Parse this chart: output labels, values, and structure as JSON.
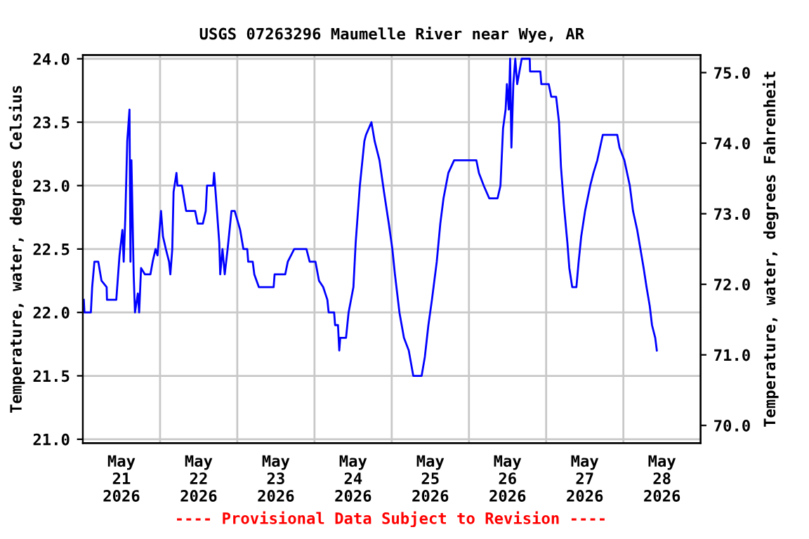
{
  "chart_data": {
    "type": "line",
    "title": "USGS 07263296 Maumelle River near Wye, AR",
    "ylabel": "Temperature, water, degrees Celsius",
    "y2label": "Temperature, water, degrees Fahrenheit",
    "annotations": [
      "---- Provisional Data Subject to Revision ----"
    ],
    "xlim": [
      "2026-05-21T00:00",
      "2026-05-29T00:00"
    ],
    "xticks": [
      {
        "value": "2026-05-21T12:00",
        "label": "May\n21\n2026"
      },
      {
        "value": "2026-05-22T00:00",
        "label": null
      },
      {
        "value": "2026-05-22T12:00",
        "label": "May\n22\n2026"
      },
      {
        "value": "2026-05-23T00:00",
        "label": null
      },
      {
        "value": "2026-05-23T12:00",
        "label": "May\n23\n2026"
      },
      {
        "value": "2026-05-24T00:00",
        "label": null
      },
      {
        "value": "2026-05-24T12:00",
        "label": "May\n24\n2026"
      },
      {
        "value": "2026-05-25T00:00",
        "label": null
      },
      {
        "value": "2026-05-25T12:00",
        "label": "May\n25\n2026"
      },
      {
        "value": "2026-05-26T00:00",
        "label": null
      },
      {
        "value": "2026-05-26T12:00",
        "label": "May\n26\n2026"
      },
      {
        "value": "2026-05-27T00:00",
        "label": null
      },
      {
        "value": "2026-05-27T12:00",
        "label": "May\n27\n2026"
      },
      {
        "value": "2026-05-28T00:00",
        "label": null
      },
      {
        "value": "2026-05-28T12:00",
        "label": "May\n28\n2026"
      }
    ],
    "ylim": [
      20.97,
      24.03
    ],
    "yticks": [
      {
        "value": 21,
        "label": "21.0"
      },
      {
        "value": 21.5,
        "label": "21.5"
      },
      {
        "value": 22,
        "label": "22.0"
      },
      {
        "value": 22.5,
        "label": "22.5"
      },
      {
        "value": 23,
        "label": "23.0"
      },
      {
        "value": 23.5,
        "label": "23.5"
      },
      {
        "value": 24,
        "label": "24.0"
      }
    ],
    "y2lim": [
      69.75,
      75.25
    ],
    "y2ticks": [
      {
        "value": 70,
        "label": "70.0"
      },
      {
        "value": 71,
        "label": "71.0"
      },
      {
        "value": 72,
        "label": "72.0"
      },
      {
        "value": 73,
        "label": "73.0"
      },
      {
        "value": 74,
        "label": "74.0"
      },
      {
        "value": 75,
        "label": "75.0"
      }
    ],
    "grid": true,
    "legend": false,
    "series": [
      {
        "color": "#0000ff",
        "x": [
          "2026-05-21T00:18",
          "2026-05-21T00:30",
          "2026-05-21T02:30",
          "2026-05-21T02:54",
          "2026-05-21T03:36",
          "2026-05-21T04:48",
          "2026-05-21T05:48",
          "2026-05-21T07:24",
          "2026-05-21T07:30",
          "2026-05-21T10:24",
          "2026-05-21T11:24",
          "2026-05-21T12:18",
          "2026-05-21T12:42",
          "2026-05-21T13:12",
          "2026-05-21T13:48",
          "2026-05-21T14:30",
          "2026-05-21T14:48",
          "2026-05-21T15:06",
          "2026-05-21T15:48",
          "2026-05-21T16:12",
          "2026-05-21T17:06",
          "2026-05-21T17:30",
          "2026-05-21T18:06",
          "2026-05-21T19:18",
          "2026-05-21T21:00",
          "2026-05-21T21:42",
          "2026-05-21T22:36",
          "2026-05-21T23:12",
          "2026-05-22T00:18",
          "2026-05-22T00:54",
          "2026-05-22T01:48",
          "2026-05-22T02:48",
          "2026-05-22T03:12",
          "2026-05-22T03:48",
          "2026-05-22T04:12",
          "2026-05-22T05:06",
          "2026-05-22T05:24",
          "2026-05-22T06:48",
          "2026-05-22T08:06",
          "2026-05-22T10:54",
          "2026-05-22T11:42",
          "2026-05-22T13:18",
          "2026-05-22T14:12",
          "2026-05-22T14:36",
          "2026-05-22T16:30",
          "2026-05-22T16:48",
          "2026-05-22T17:24",
          "2026-05-22T18:24",
          "2026-05-22T18:42",
          "2026-05-22T19:24",
          "2026-05-22T20:06",
          "2026-05-22T21:00",
          "2026-05-22T22:12",
          "2026-05-22T23:12",
          "2026-05-23T00:54",
          "2026-05-23T01:54",
          "2026-05-23T03:06",
          "2026-05-23T03:24",
          "2026-05-23T04:48",
          "2026-05-23T05:18",
          "2026-05-23T06:42",
          "2026-05-23T11:18",
          "2026-05-23T11:36",
          "2026-05-23T14:54",
          "2026-05-23T15:42",
          "2026-05-23T17:42",
          "2026-05-23T21:30",
          "2026-05-23T22:30",
          "2026-05-24T00:18",
          "2026-05-24T01:24",
          "2026-05-24T02:42",
          "2026-05-24T04:00",
          "2026-05-24T04:24",
          "2026-05-24T06:06",
          "2026-05-24T06:24",
          "2026-05-24T07:18",
          "2026-05-24T07:42",
          "2026-05-24T08:00",
          "2026-05-24T09:48",
          "2026-05-24T10:36",
          "2026-05-24T12:06",
          "2026-05-24T12:48",
          "2026-05-24T14:06",
          "2026-05-24T15:30",
          "2026-05-24T16:00",
          "2026-05-24T17:42",
          "2026-05-24T18:42",
          "2026-05-24T20:12",
          "2026-05-24T21:36",
          "2026-05-24T23:06",
          "2026-05-25T00:12",
          "2026-05-25T01:00",
          "2026-05-25T02:24",
          "2026-05-25T03:48",
          "2026-05-25T05:18",
          "2026-05-25T06:42",
          "2026-05-25T09:18",
          "2026-05-25T10:18",
          "2026-05-25T11:24",
          "2026-05-25T12:30",
          "2026-05-25T14:00",
          "2026-05-25T15:06",
          "2026-05-25T16:06",
          "2026-05-25T17:36",
          "2026-05-25T19:24",
          "2026-05-26T02:18",
          "2026-05-26T03:06",
          "2026-05-26T04:36",
          "2026-05-26T06:18",
          "2026-05-26T08:54",
          "2026-05-26T09:48",
          "2026-05-26T10:36",
          "2026-05-26T11:24",
          "2026-05-26T11:48",
          "2026-05-26T12:24",
          "2026-05-26T12:48",
          "2026-05-26T13:12",
          "2026-05-26T13:48",
          "2026-05-26T14:24",
          "2026-05-26T15:00",
          "2026-05-26T15:42",
          "2026-05-26T16:24",
          "2026-05-26T18:54",
          "2026-05-26T19:00",
          "2026-05-26T22:12",
          "2026-05-26T22:30",
          "2026-05-27T00:48",
          "2026-05-27T01:36",
          "2026-05-27T03:06",
          "2026-05-27T04:00",
          "2026-05-27T04:36",
          "2026-05-27T05:30",
          "2026-05-27T06:36",
          "2026-05-27T07:12",
          "2026-05-27T08:06",
          "2026-05-27T09:24",
          "2026-05-27T10:06",
          "2026-05-27T10:54",
          "2026-05-27T12:06",
          "2026-05-27T13:42",
          "2026-05-27T14:42",
          "2026-05-27T15:54",
          "2026-05-27T17:36",
          "2026-05-27T22:06",
          "2026-05-27T22:48",
          "2026-05-28T00:18",
          "2026-05-28T02:00",
          "2026-05-28T03:00",
          "2026-05-28T04:18",
          "2026-05-28T05:18",
          "2026-05-28T06:18",
          "2026-05-28T07:12",
          "2026-05-28T08:12",
          "2026-05-28T08:54",
          "2026-05-28T09:54",
          "2026-05-28T10:24"
        ],
        "values": [
          22.1,
          22.0,
          22.0,
          22.2,
          22.4,
          22.4,
          22.25,
          22.2,
          22.1,
          22.1,
          22.45,
          22.65,
          22.4,
          22.75,
          23.35,
          23.6,
          22.4,
          23.2,
          22.3,
          22.0,
          22.15,
          22.0,
          22.35,
          22.3,
          22.3,
          22.4,
          22.5,
          22.45,
          22.8,
          22.6,
          22.5,
          22.4,
          22.3,
          22.5,
          22.95,
          23.1,
          23.0,
          23.0,
          22.8,
          22.8,
          22.7,
          22.7,
          22.8,
          23.0,
          23.0,
          23.1,
          22.9,
          22.55,
          22.3,
          22.5,
          22.3,
          22.5,
          22.8,
          22.8,
          22.65,
          22.5,
          22.5,
          22.4,
          22.4,
          22.3,
          22.2,
          22.2,
          22.3,
          22.3,
          22.4,
          22.5,
          22.5,
          22.4,
          22.4,
          22.25,
          22.2,
          22.1,
          22.0,
          22.0,
          21.9,
          21.9,
          21.7,
          21.8,
          21.8,
          22.0,
          22.2,
          22.55,
          23.0,
          23.35,
          23.4,
          23.5,
          23.35,
          23.2,
          22.95,
          22.7,
          22.5,
          22.3,
          22.0,
          21.8,
          21.7,
          21.5,
          21.5,
          21.65,
          21.9,
          22.1,
          22.4,
          22.7,
          22.9,
          23.1,
          23.2,
          23.2,
          23.1,
          23.0,
          22.9,
          22.9,
          23.0,
          23.45,
          23.6,
          23.8,
          23.6,
          24.0,
          23.3,
          23.8,
          24.0,
          23.8,
          23.9,
          24.0,
          24.0,
          23.9,
          23.9,
          23.8,
          23.8,
          23.7,
          23.7,
          23.5,
          23.15,
          22.85,
          22.55,
          22.35,
          22.2,
          22.2,
          22.4,
          22.6,
          22.8,
          23.0,
          23.1,
          23.2,
          23.4,
          23.4,
          23.3,
          23.2,
          23.0,
          22.8,
          22.65,
          22.5,
          22.35,
          22.2,
          22.05,
          21.9,
          21.8,
          21.7
        ]
      }
    ]
  }
}
